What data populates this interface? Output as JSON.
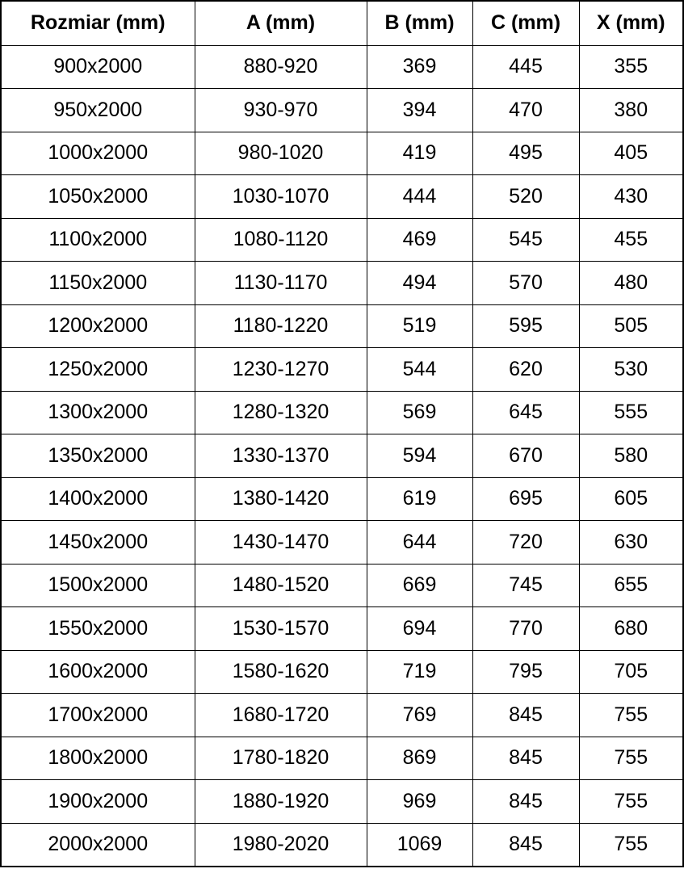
{
  "colors": {
    "background": "#ffffff",
    "text": "#000000",
    "border": "#000000"
  },
  "table": {
    "columns": [
      "Rozmiar (mm)",
      "A (mm)",
      "B (mm)",
      "C (mm)",
      "X (mm)"
    ],
    "rows": [
      [
        "900x2000",
        "880-920",
        "369",
        "445",
        "355"
      ],
      [
        "950x2000",
        "930-970",
        "394",
        "470",
        "380"
      ],
      [
        "1000x2000",
        "980-1020",
        "419",
        "495",
        "405"
      ],
      [
        "1050x2000",
        "1030-1070",
        "444",
        "520",
        "430"
      ],
      [
        "1100x2000",
        "1080-1120",
        "469",
        "545",
        "455"
      ],
      [
        "1150x2000",
        "1130-1170",
        "494",
        "570",
        "480"
      ],
      [
        "1200x2000",
        "1180-1220",
        "519",
        "595",
        "505"
      ],
      [
        "1250x2000",
        "1230-1270",
        "544",
        "620",
        "530"
      ],
      [
        "1300x2000",
        "1280-1320",
        "569",
        "645",
        "555"
      ],
      [
        "1350x2000",
        "1330-1370",
        "594",
        "670",
        "580"
      ],
      [
        "1400x2000",
        "1380-1420",
        "619",
        "695",
        "605"
      ],
      [
        "1450x2000",
        "1430-1470",
        "644",
        "720",
        "630"
      ],
      [
        "1500x2000",
        "1480-1520",
        "669",
        "745",
        "655"
      ],
      [
        "1550x2000",
        "1530-1570",
        "694",
        "770",
        "680"
      ],
      [
        "1600x2000",
        "1580-1620",
        "719",
        "795",
        "705"
      ],
      [
        "1700x2000",
        "1680-1720",
        "769",
        "845",
        "755"
      ],
      [
        "1800x2000",
        "1780-1820",
        "869",
        "845",
        "755"
      ],
      [
        "1900x2000",
        "1880-1920",
        "969",
        "845",
        "755"
      ],
      [
        "2000x2000",
        "1980-2020",
        "1069",
        "845",
        "755"
      ]
    ]
  }
}
